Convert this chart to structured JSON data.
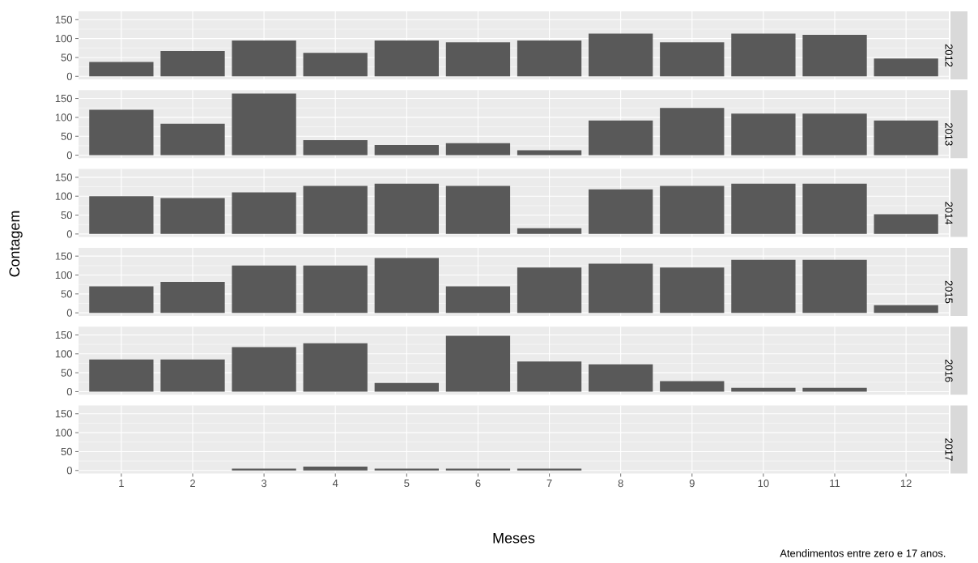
{
  "chart_data": [
    {
      "type": "bar",
      "title": "2012",
      "categories": [
        "1",
        "2",
        "3",
        "4",
        "5",
        "6",
        "7",
        "8",
        "9",
        "10",
        "11",
        "12"
      ],
      "values": [
        38,
        67,
        95,
        62,
        95,
        90,
        95,
        113,
        90,
        113,
        110,
        47
      ],
      "color": "#595959",
      "ylim": [
        -8,
        172
      ],
      "yticks": [
        0,
        50,
        100,
        150
      ],
      "grid": true,
      "tick_labels": "y"
    },
    {
      "type": "bar",
      "title": "2013",
      "categories": [
        "1",
        "2",
        "3",
        "4",
        "5",
        "6",
        "7",
        "8",
        "9",
        "10",
        "11",
        "12"
      ],
      "values": [
        120,
        83,
        163,
        40,
        27,
        32,
        13,
        92,
        125,
        110,
        110,
        92
      ],
      "color": "#595959",
      "ylim": [
        -8,
        172
      ],
      "yticks": [
        0,
        50,
        100,
        150
      ],
      "grid": true,
      "tick_labels": "y"
    },
    {
      "type": "bar",
      "title": "2014",
      "ylabel": "Contagem",
      "categories": [
        "1",
        "2",
        "3",
        "4",
        "5",
        "6",
        "7",
        "8",
        "9",
        "10",
        "11",
        "12"
      ],
      "values": [
        100,
        95,
        110,
        127,
        133,
        127,
        15,
        118,
        127,
        133,
        133,
        52
      ],
      "color": "#595959",
      "ylim": [
        -8,
        172
      ],
      "yticks": [
        0,
        50,
        100,
        150
      ],
      "grid": true,
      "tick_labels": "y"
    },
    {
      "type": "bar",
      "title": "2015",
      "categories": [
        "1",
        "2",
        "3",
        "4",
        "5",
        "6",
        "7",
        "8",
        "9",
        "10",
        "11",
        "12"
      ],
      "values": [
        70,
        82,
        125,
        125,
        145,
        70,
        120,
        130,
        120,
        140,
        140,
        20
      ],
      "color": "#595959",
      "ylim": [
        -8,
        172
      ],
      "yticks": [
        0,
        50,
        100,
        150
      ],
      "grid": true,
      "tick_labels": "y"
    },
    {
      "type": "bar",
      "title": "2016",
      "categories": [
        "1",
        "2",
        "3",
        "4",
        "5",
        "6",
        "7",
        "8",
        "9",
        "10",
        "11",
        "12"
      ],
      "values": [
        85,
        85,
        118,
        128,
        23,
        148,
        80,
        72,
        28,
        10,
        10,
        null
      ],
      "color": "#595959",
      "ylim": [
        -8,
        172
      ],
      "yticks": [
        0,
        50,
        100,
        150
      ],
      "grid": true,
      "tick_labels": "y"
    },
    {
      "type": "bar",
      "title": "2017",
      "xlabel": "Meses",
      "annotations": [
        "Atendimentos entre zero e 17 anos."
      ],
      "categories": [
        "1",
        "2",
        "3",
        "4",
        "5",
        "6",
        "7",
        "8",
        "9",
        "10",
        "11",
        "12"
      ],
      "values": [
        null,
        null,
        5,
        10,
        5,
        5,
        5,
        null,
        null,
        null,
        null,
        null
      ],
      "color": "#595959",
      "ylim": [
        -8,
        172
      ],
      "yticks": [
        0,
        50,
        100,
        150
      ],
      "grid": true
    }
  ]
}
